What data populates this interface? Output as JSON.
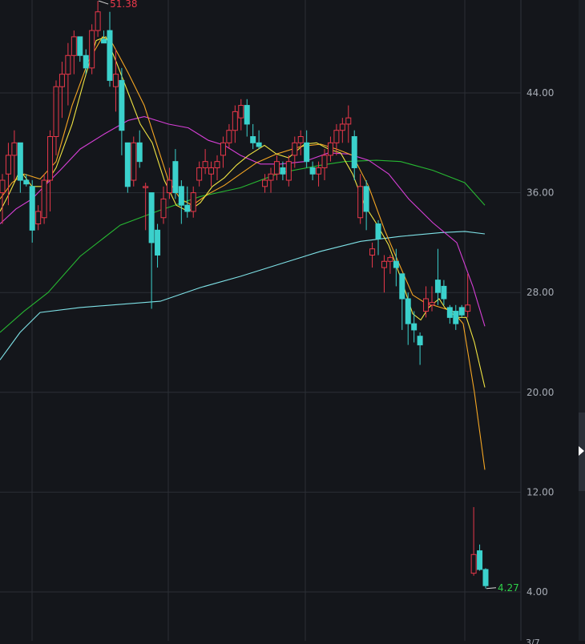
{
  "chart_data": {
    "type": "candlestick",
    "y_axis": {
      "ticks": [
        "44.00",
        "36.00",
        "28.00",
        "20.00",
        "12.00",
        "4.00"
      ],
      "ylim": [
        1.6,
        52.0
      ]
    },
    "annotations": {
      "high_label": "51.38",
      "low_label": "4.27"
    },
    "colors": {
      "up": "#e8384a",
      "down": "#3bd1cc",
      "ma5": "#f0e442",
      "ma10": "#f5a623",
      "ma20": "#d63fd6",
      "ma60": "#27b832",
      "ma250": "#7fe3e8",
      "grid": "#2b2f36",
      "label": "#a7acb5",
      "bg": "#14161b"
    },
    "candles": [
      {
        "o": 36.0,
        "h": 37.5,
        "l": 33.5,
        "c": 37.0
      },
      {
        "o": 37.5,
        "h": 40.0,
        "l": 35.0,
        "c": 39.0
      },
      {
        "o": 39.0,
        "h": 41.0,
        "l": 37.0,
        "c": 40.0
      },
      {
        "o": 40.0,
        "h": 40.0,
        "l": 36.0,
        "c": 37.0
      },
      {
        "o": 37.0,
        "h": 37.5,
        "l": 36.5,
        "c": 36.7
      },
      {
        "o": 36.5,
        "h": 37.0,
        "l": 32.0,
        "c": 33.0
      },
      {
        "o": 33.5,
        "h": 35.0,
        "l": 33.0,
        "c": 34.5
      },
      {
        "o": 34.0,
        "h": 37.5,
        "l": 33.5,
        "c": 37.0
      },
      {
        "o": 37.0,
        "h": 41.0,
        "l": 34.5,
        "c": 40.5
      },
      {
        "o": 40.5,
        "h": 45.0,
        "l": 39.0,
        "c": 44.5
      },
      {
        "o": 44.5,
        "h": 46.5,
        "l": 42.0,
        "c": 45.5
      },
      {
        "o": 45.5,
        "h": 48.0,
        "l": 43.0,
        "c": 47.0
      },
      {
        "o": 47.0,
        "h": 49.0,
        "l": 45.5,
        "c": 48.5
      },
      {
        "o": 48.5,
        "h": 48.5,
        "l": 46.5,
        "c": 47.0
      },
      {
        "o": 47.0,
        "h": 47.5,
        "l": 45.5,
        "c": 46.0
      },
      {
        "o": 46.0,
        "h": 49.5,
        "l": 45.5,
        "c": 49.0
      },
      {
        "o": 49.0,
        "h": 51.38,
        "l": 48.5,
        "c": 50.5
      },
      {
        "o": 48.3,
        "h": 49.0,
        "l": 48.0,
        "c": 48.0
      },
      {
        "o": 49.0,
        "h": 50.5,
        "l": 44.5,
        "c": 45.0
      },
      {
        "o": 44.5,
        "h": 47.5,
        "l": 42.5,
        "c": 45.5
      },
      {
        "o": 45.0,
        "h": 46.0,
        "l": 39.0,
        "c": 41.0
      },
      {
        "o": 40.0,
        "h": 40.0,
        "l": 36.0,
        "c": 36.5
      },
      {
        "o": 37.0,
        "h": 40.5,
        "l": 36.5,
        "c": 40.0
      },
      {
        "o": 40.0,
        "h": 41.0,
        "l": 38.0,
        "c": 38.5
      },
      {
        "o": 36.5,
        "h": 36.8,
        "l": 33.0,
        "c": 36.5
      },
      {
        "o": 36.0,
        "h": 36.0,
        "l": 26.7,
        "c": 32.0
      },
      {
        "o": 33.0,
        "h": 33.5,
        "l": 30.0,
        "c": 31.0
      },
      {
        "o": 34.0,
        "h": 36.5,
        "l": 33.5,
        "c": 35.5
      },
      {
        "o": 36.0,
        "h": 38.0,
        "l": 35.5,
        "c": 37.0
      },
      {
        "o": 38.5,
        "h": 39.5,
        "l": 35.5,
        "c": 36.0
      },
      {
        "o": 36.5,
        "h": 37.0,
        "l": 33.5,
        "c": 35.0
      },
      {
        "o": 35.0,
        "h": 36.5,
        "l": 34.0,
        "c": 34.5
      },
      {
        "o": 34.5,
        "h": 36.5,
        "l": 34.0,
        "c": 36.0
      },
      {
        "o": 37.0,
        "h": 38.5,
        "l": 36.5,
        "c": 38.0
      },
      {
        "o": 38.0,
        "h": 39.5,
        "l": 37.5,
        "c": 38.5
      },
      {
        "o": 37.5,
        "h": 38.5,
        "l": 36.5,
        "c": 38.0
      },
      {
        "o": 38.0,
        "h": 39.0,
        "l": 37.0,
        "c": 38.5
      },
      {
        "o": 39.0,
        "h": 40.5,
        "l": 38.0,
        "c": 40.0
      },
      {
        "o": 40.0,
        "h": 41.5,
        "l": 39.5,
        "c": 41.0
      },
      {
        "o": 41.0,
        "h": 43.0,
        "l": 40.0,
        "c": 42.5
      },
      {
        "o": 42.0,
        "h": 43.5,
        "l": 41.0,
        "c": 43.0
      },
      {
        "o": 43.0,
        "h": 43.5,
        "l": 40.5,
        "c": 41.5
      },
      {
        "o": 40.5,
        "h": 41.5,
        "l": 39.5,
        "c": 40.0
      },
      {
        "o": 40.0,
        "h": 41.0,
        "l": 39.5,
        "c": 39.7
      },
      {
        "o": 36.5,
        "h": 37.5,
        "l": 36.0,
        "c": 37.0
      },
      {
        "o": 37.0,
        "h": 38.0,
        "l": 36.0,
        "c": 37.5
      },
      {
        "o": 37.5,
        "h": 39.0,
        "l": 37.0,
        "c": 38.5
      },
      {
        "o": 38.0,
        "h": 38.5,
        "l": 37.0,
        "c": 37.5
      },
      {
        "o": 37.0,
        "h": 39.0,
        "l": 36.5,
        "c": 38.5
      },
      {
        "o": 39.0,
        "h": 40.5,
        "l": 38.0,
        "c": 40.0
      },
      {
        "o": 40.0,
        "h": 41.0,
        "l": 39.0,
        "c": 40.5
      },
      {
        "o": 40.0,
        "h": 41.0,
        "l": 38.0,
        "c": 38.5
      },
      {
        "o": 38.0,
        "h": 38.5,
        "l": 37.0,
        "c": 37.5
      },
      {
        "o": 37.5,
        "h": 38.5,
        "l": 36.5,
        "c": 38.0
      },
      {
        "o": 38.0,
        "h": 39.5,
        "l": 37.0,
        "c": 39.0
      },
      {
        "o": 39.0,
        "h": 40.5,
        "l": 38.5,
        "c": 40.0
      },
      {
        "o": 40.0,
        "h": 41.5,
        "l": 39.0,
        "c": 41.0
      },
      {
        "o": 41.0,
        "h": 42.0,
        "l": 40.0,
        "c": 41.5
      },
      {
        "o": 41.5,
        "h": 43.0,
        "l": 40.0,
        "c": 42.0
      },
      {
        "o": 40.5,
        "h": 41.0,
        "l": 37.0,
        "c": 38.0
      },
      {
        "o": 34.0,
        "h": 37.5,
        "l": 33.5,
        "c": 36.5
      },
      {
        "o": 36.5,
        "h": 37.0,
        "l": 33.0,
        "c": 34.5
      },
      {
        "o": 31.0,
        "h": 32.0,
        "l": 30.0,
        "c": 31.5
      },
      {
        "o": 33.5,
        "h": 33.8,
        "l": 31.0,
        "c": 32.3
      },
      {
        "o": 30.0,
        "h": 31.0,
        "l": 28.0,
        "c": 30.5
      },
      {
        "o": 30.5,
        "h": 31.0,
        "l": 29.5,
        "c": 30.8
      },
      {
        "o": 30.5,
        "h": 31.5,
        "l": 28.5,
        "c": 30.0
      },
      {
        "o": 29.5,
        "h": 29.5,
        "l": 25.0,
        "c": 27.5
      },
      {
        "o": 27.5,
        "h": 28.0,
        "l": 23.8,
        "c": 25.5
      },
      {
        "o": 25.5,
        "h": 26.5,
        "l": 24.0,
        "c": 25.0
      },
      {
        "o": 24.5,
        "h": 24.8,
        "l": 22.2,
        "c": 23.8
      },
      {
        "o": 26.5,
        "h": 28.5,
        "l": 26.0,
        "c": 27.5
      },
      {
        "o": 27.0,
        "h": 28.5,
        "l": 26.5,
        "c": 27.2
      },
      {
        "o": 29.0,
        "h": 31.5,
        "l": 27.0,
        "c": 28.0
      },
      {
        "o": 28.5,
        "h": 29.0,
        "l": 27.0,
        "c": 27.5
      },
      {
        "o": 26.8,
        "h": 27.0,
        "l": 25.5,
        "c": 26.0
      },
      {
        "o": 26.5,
        "h": 27.0,
        "l": 25.0,
        "c": 25.5
      },
      {
        "o": 26.8,
        "h": 27.0,
        "l": 26.0,
        "c": 26.2
      },
      {
        "o": 26.5,
        "h": 29.5,
        "l": 26.0,
        "c": 27.0
      },
      {
        "o": 5.5,
        "h": 10.8,
        "l": 5.3,
        "c": 7.0
      },
      {
        "o": 7.3,
        "h": 7.8,
        "l": 5.7,
        "c": 5.8
      },
      {
        "o": 5.8,
        "h": 5.9,
        "l": 4.27,
        "c": 4.5
      }
    ],
    "ma_lines": [
      {
        "key": "ma250",
        "points": [
          [
            0,
            22.6
          ],
          [
            25,
            24.8
          ],
          [
            50,
            26.4
          ],
          [
            100,
            26.8
          ],
          [
            200,
            27.3
          ],
          [
            250,
            28.4
          ],
          [
            300,
            29.3
          ],
          [
            350,
            30.3
          ],
          [
            400,
            31.3
          ],
          [
            450,
            32.1
          ],
          [
            500,
            32.5
          ],
          [
            550,
            32.8
          ],
          [
            580,
            32.9
          ],
          [
            605,
            32.7
          ]
        ]
      },
      {
        "key": "ma60",
        "points": [
          [
            0,
            24.8
          ],
          [
            30,
            26.5
          ],
          [
            60,
            28.0
          ],
          [
            100,
            30.9
          ],
          [
            150,
            33.4
          ],
          [
            200,
            34.6
          ],
          [
            250,
            35.7
          ],
          [
            300,
            36.4
          ],
          [
            350,
            37.6
          ],
          [
            400,
            38.2
          ],
          [
            430,
            38.5
          ],
          [
            470,
            38.6
          ],
          [
            500,
            38.5
          ],
          [
            540,
            37.8
          ],
          [
            580,
            36.8
          ],
          [
            605,
            35.0
          ]
        ]
      },
      {
        "key": "ma20",
        "points": [
          [
            0,
            33.5
          ],
          [
            20,
            34.7
          ],
          [
            40,
            35.5
          ],
          [
            55,
            36.5
          ],
          [
            75,
            37.8
          ],
          [
            100,
            39.5
          ],
          [
            130,
            40.7
          ],
          [
            160,
            41.8
          ],
          [
            180,
            42.1
          ],
          [
            210,
            41.5
          ],
          [
            235,
            41.2
          ],
          [
            260,
            40.2
          ],
          [
            280,
            39.8
          ],
          [
            300,
            39.0
          ],
          [
            325,
            38.3
          ],
          [
            350,
            38.3
          ],
          [
            380,
            38.5
          ],
          [
            410,
            39.2
          ],
          [
            435,
            39.1
          ],
          [
            460,
            38.6
          ],
          [
            485,
            37.5
          ],
          [
            510,
            35.5
          ],
          [
            540,
            33.6
          ],
          [
            570,
            32.0
          ],
          [
            590,
            28.5
          ],
          [
            605,
            25.3
          ]
        ]
      },
      {
        "key": "ma10",
        "points": [
          [
            0,
            35.5
          ],
          [
            15,
            36.8
          ],
          [
            30,
            37.5
          ],
          [
            50,
            37.1
          ],
          [
            70,
            38.5
          ],
          [
            90,
            43.0
          ],
          [
            110,
            46.5
          ],
          [
            128,
            48.5
          ],
          [
            140,
            48.0
          ],
          [
            160,
            45.6
          ],
          [
            180,
            43.0
          ],
          [
            195,
            40.0
          ],
          [
            210,
            37.0
          ],
          [
            225,
            35.5
          ],
          [
            240,
            35.0
          ],
          [
            260,
            35.9
          ],
          [
            280,
            36.6
          ],
          [
            300,
            37.5
          ],
          [
            320,
            38.4
          ],
          [
            345,
            39.1
          ],
          [
            375,
            39.7
          ],
          [
            400,
            39.9
          ],
          [
            420,
            39.5
          ],
          [
            440,
            39.0
          ],
          [
            460,
            36.5
          ],
          [
            480,
            33.0
          ],
          [
            500,
            30.0
          ],
          [
            515,
            27.8
          ],
          [
            530,
            27.2
          ],
          [
            550,
            26.8
          ],
          [
            565,
            26.5
          ],
          [
            578,
            25.5
          ],
          [
            592,
            20.0
          ],
          [
            605,
            13.8
          ]
        ]
      },
      {
        "key": "ma5",
        "points": [
          [
            0,
            34.5
          ],
          [
            12,
            36.0
          ],
          [
            25,
            37.8
          ],
          [
            40,
            36.5
          ],
          [
            55,
            36.5
          ],
          [
            70,
            38.0
          ],
          [
            90,
            41.5
          ],
          [
            105,
            45.0
          ],
          [
            120,
            48.2
          ],
          [
            132,
            48.5
          ],
          [
            145,
            46.5
          ],
          [
            160,
            44.0
          ],
          [
            175,
            41.5
          ],
          [
            190,
            40.0
          ],
          [
            205,
            37.0
          ],
          [
            220,
            35.0
          ],
          [
            235,
            34.5
          ],
          [
            250,
            35.2
          ],
          [
            265,
            36.5
          ],
          [
            280,
            37.2
          ],
          [
            295,
            38.2
          ],
          [
            310,
            39.0
          ],
          [
            330,
            39.8
          ],
          [
            345,
            39.1
          ],
          [
            360,
            38.8
          ],
          [
            380,
            39.9
          ],
          [
            395,
            40.0
          ],
          [
            410,
            39.5
          ],
          [
            425,
            39.2
          ],
          [
            440,
            37.5
          ],
          [
            455,
            35.0
          ],
          [
            470,
            33.5
          ],
          [
            485,
            31.8
          ],
          [
            500,
            29.2
          ],
          [
            515,
            26.3
          ],
          [
            525,
            25.8
          ],
          [
            535,
            26.8
          ],
          [
            548,
            27.5
          ],
          [
            555,
            26.8
          ],
          [
            570,
            26.0
          ],
          [
            582,
            26.0
          ],
          [
            592,
            24.0
          ],
          [
            605,
            20.4
          ]
        ]
      }
    ],
    "x_partial_label": "3/7"
  }
}
